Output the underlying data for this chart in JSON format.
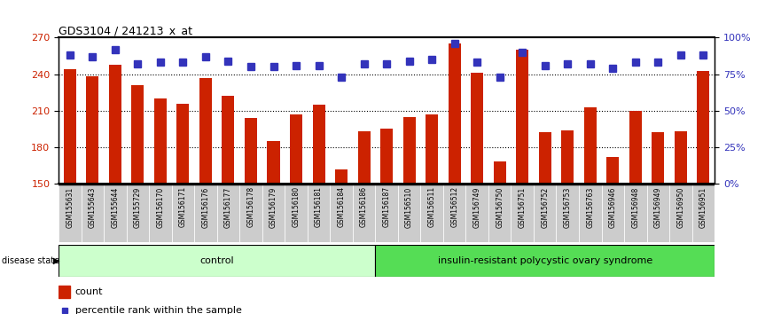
{
  "title": "GDS3104 / 241213_x_at",
  "samples": [
    "GSM155631",
    "GSM155643",
    "GSM155644",
    "GSM155729",
    "GSM156170",
    "GSM156171",
    "GSM156176",
    "GSM156177",
    "GSM156178",
    "GSM156179",
    "GSM156180",
    "GSM156181",
    "GSM156184",
    "GSM156186",
    "GSM156187",
    "GSM156510",
    "GSM156511",
    "GSM156512",
    "GSM156749",
    "GSM156750",
    "GSM156751",
    "GSM156752",
    "GSM156753",
    "GSM156763",
    "GSM156946",
    "GSM156948",
    "GSM156949",
    "GSM156950",
    "GSM156951"
  ],
  "bar_values": [
    244,
    238,
    248,
    231,
    220,
    216,
    237,
    222,
    204,
    185,
    207,
    215,
    162,
    193,
    195,
    205,
    207,
    265,
    241,
    168,
    260,
    192,
    194,
    213,
    172,
    210,
    192,
    193,
    243
  ],
  "percentile_values": [
    88,
    87,
    92,
    82,
    83,
    83,
    87,
    84,
    80,
    80,
    81,
    81,
    73,
    82,
    82,
    84,
    85,
    96,
    83,
    73,
    90,
    81,
    82,
    82,
    79,
    83,
    83,
    88,
    88
  ],
  "control_count": 14,
  "disease_count": 15,
  "ylim_left": [
    150,
    270
  ],
  "ylim_right": [
    0,
    100
  ],
  "yticks_left": [
    150,
    180,
    210,
    240,
    270
  ],
  "yticks_right": [
    0,
    25,
    50,
    75,
    100
  ],
  "ytick_labels_right": [
    "0%",
    "25%",
    "50%",
    "75%",
    "100%"
  ],
  "bar_color": "#CC2200",
  "percentile_color": "#3333BB",
  "control_label": "control",
  "disease_label": "insulin-resistant polycystic ovary syndrome",
  "control_bg": "#CCFFCC",
  "disease_bg": "#55DD55",
  "legend_count_label": "count",
  "legend_percentile_label": "percentile rank within the sample",
  "bar_width": 0.55,
  "percentile_marker_size": 6,
  "tick_bg_color": "#CCCCCC",
  "top_border_color": "#000000",
  "fig_width": 8.81,
  "fig_height": 3.54,
  "dpi": 100
}
